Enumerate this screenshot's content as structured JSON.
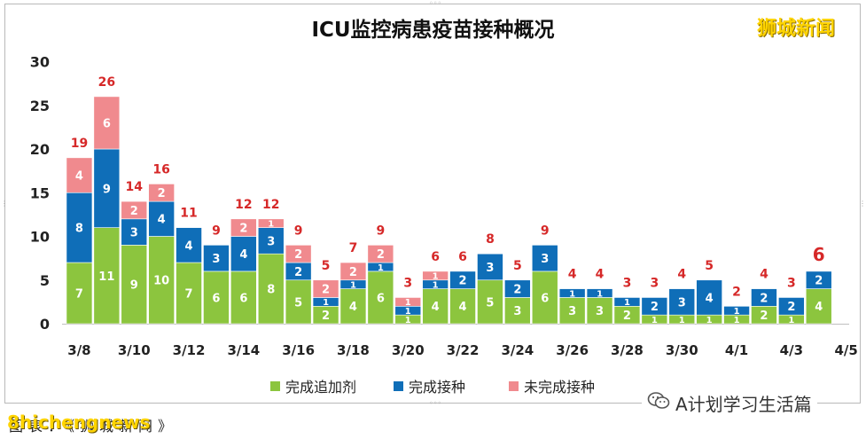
{
  "brand_text": "狮城新闻",
  "watermark_text": "A计划学习生活篇",
  "watermark_icon": "wechat-icon",
  "footer_text": "8hichengnews",
  "footer_under_text": "图表：《狮城新闻》",
  "colors": {
    "booster": "#8cc53e",
    "vaccinated": "#0f6eb8",
    "unvaccinated": "#f08a8e",
    "total_label": "#d62828",
    "segment_label": "#ffffff"
  },
  "chart_data": {
    "type": "bar",
    "stacked": true,
    "title": "ICU监控病患疫苗接种概况",
    "categories": [
      "3/8",
      "3/9",
      "3/10",
      "3/11",
      "3/12",
      "3/13",
      "3/14",
      "3/15",
      "3/16",
      "3/17",
      "3/18",
      "3/19",
      "3/20",
      "3/21",
      "3/22",
      "3/23",
      "3/24",
      "3/25",
      "3/26",
      "3/27",
      "3/28",
      "3/29",
      "3/30",
      "3/31",
      "4/1",
      "4/2",
      "4/3",
      "4/4"
    ],
    "x_tick_labels": [
      "3/8",
      "3/10",
      "3/12",
      "3/14",
      "3/16",
      "3/18",
      "3/20",
      "3/22",
      "3/24",
      "3/26",
      "3/28",
      "3/30",
      "4/1",
      "4/3",
      "4/5"
    ],
    "series": [
      {
        "name": "完成追加剂",
        "color": "#8cc53e",
        "values": [
          7,
          11,
          9,
          10,
          7,
          6,
          6,
          8,
          5,
          2,
          4,
          6,
          1,
          4,
          4,
          5,
          3,
          6,
          3,
          3,
          2,
          1,
          1,
          1,
          1,
          2,
          1,
          4
        ]
      },
      {
        "name": "完成接种",
        "color": "#0f6eb8",
        "values": [
          8,
          9,
          3,
          4,
          4,
          3,
          4,
          3,
          2,
          1,
          1,
          1,
          1,
          1,
          2,
          3,
          2,
          3,
          1,
          1,
          1,
          2,
          3,
          4,
          1,
          2,
          2,
          2
        ]
      },
      {
        "name": "未完成接种",
        "color": "#f08a8e",
        "values": [
          4,
          6,
          2,
          2,
          0,
          0,
          2,
          1,
          2,
          2,
          2,
          2,
          1,
          1,
          0,
          0,
          0,
          0,
          0,
          0,
          0,
          0,
          0,
          0,
          0,
          0,
          0,
          0
        ]
      }
    ],
    "segment_labels": {
      "完成追加剂": [
        7,
        11,
        9,
        10,
        7,
        6,
        6,
        8,
        5,
        2,
        4,
        6,
        1,
        4,
        4,
        5,
        3,
        6,
        3,
        3,
        2,
        1,
        1,
        1,
        1,
        2,
        1,
        4
      ],
      "完成接种": [
        8,
        9,
        3,
        4,
        4,
        3,
        4,
        3,
        2,
        1,
        1,
        1,
        1,
        1,
        2,
        3,
        2,
        3,
        1,
        1,
        1,
        2,
        3,
        4,
        1,
        2,
        2,
        2
      ],
      "未完成接种": [
        4,
        6,
        2,
        2,
        null,
        null,
        2,
        1,
        2,
        2,
        2,
        2,
        1,
        1,
        null,
        null,
        null,
        null,
        null,
        null,
        null,
        null,
        null,
        null,
        null,
        null,
        null,
        null
      ]
    },
    "totals": [
      19,
      26,
      14,
      16,
      11,
      9,
      12,
      12,
      9,
      5,
      7,
      9,
      3,
      6,
      6,
      8,
      5,
      9,
      4,
      4,
      3,
      3,
      4,
      5,
      2,
      4,
      3,
      6
    ],
    "y_ticks": [
      0,
      5,
      10,
      15,
      20,
      25,
      30
    ],
    "ylim": [
      0,
      30
    ],
    "xlabel": "",
    "ylabel": "",
    "grid": false,
    "legend_position": "bottom"
  }
}
